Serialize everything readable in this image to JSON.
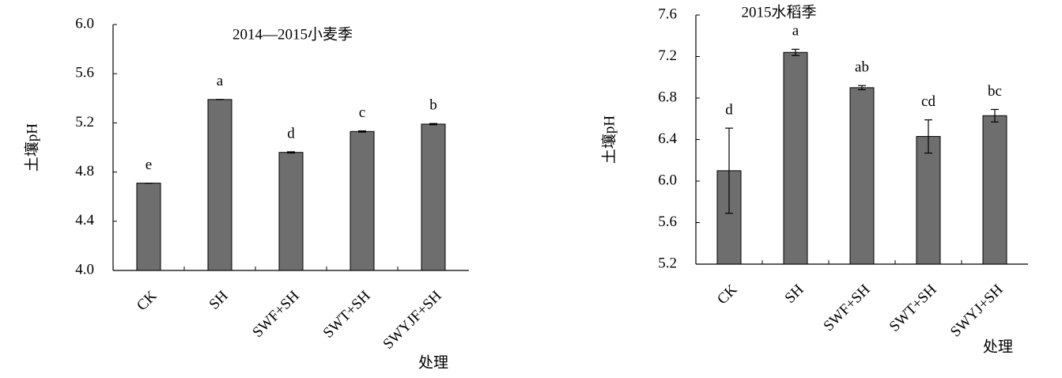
{
  "chart_data": [
    {
      "type": "bar",
      "title": "2014—2015小麦季",
      "ylabel": "土壤pH",
      "xlabel": "处理",
      "categories": [
        "CK",
        "SH",
        "SWF+SH",
        "SWT+SH",
        "SWYJF+SH"
      ],
      "values": [
        4.71,
        5.39,
        4.96,
        5.13,
        5.19
      ],
      "errors": [
        0,
        0,
        0.005,
        0.005,
        0.005
      ],
      "annotations": [
        "e",
        "a",
        "d",
        "c",
        "b"
      ],
      "color": "#6e6e6e",
      "ylim": [
        4.0,
        6.0
      ],
      "yticks": [
        {
          "value": 4.0,
          "label": "4.0"
        },
        {
          "value": 4.4,
          "label": "4.4"
        },
        {
          "value": 4.8,
          "label": "4.8"
        },
        {
          "value": 5.2,
          "label": "5.2"
        },
        {
          "value": 5.6,
          "label": "5.6"
        },
        {
          "value": 6.0,
          "label": "6.0"
        }
      ]
    },
    {
      "type": "bar",
      "title": "2015水稻季",
      "ylabel": "土壤pH",
      "xlabel": "处理",
      "categories": [
        "CK",
        "SH",
        "SWF+SH",
        "SWT+SH",
        "SWYJ+SH"
      ],
      "values": [
        6.1,
        7.24,
        6.9,
        6.43,
        6.63
      ],
      "errors": [
        0.41,
        0.03,
        0.02,
        0.16,
        0.06
      ],
      "annotations": [
        "d",
        "a",
        "ab",
        "cd",
        "bc"
      ],
      "color": "#6e6e6e",
      "ylim": [
        5.2,
        7.6
      ],
      "yticks": [
        {
          "value": 5.2,
          "label": "5.2"
        },
        {
          "value": 5.6,
          "label": "5.6"
        },
        {
          "value": 6.0,
          "label": "6.0"
        },
        {
          "value": 6.4,
          "label": "6.4"
        },
        {
          "value": 6.8,
          "label": "6.8"
        },
        {
          "value": 7.2,
          "label": "7.2"
        },
        {
          "value": 7.6,
          "label": "7.6"
        }
      ]
    }
  ]
}
